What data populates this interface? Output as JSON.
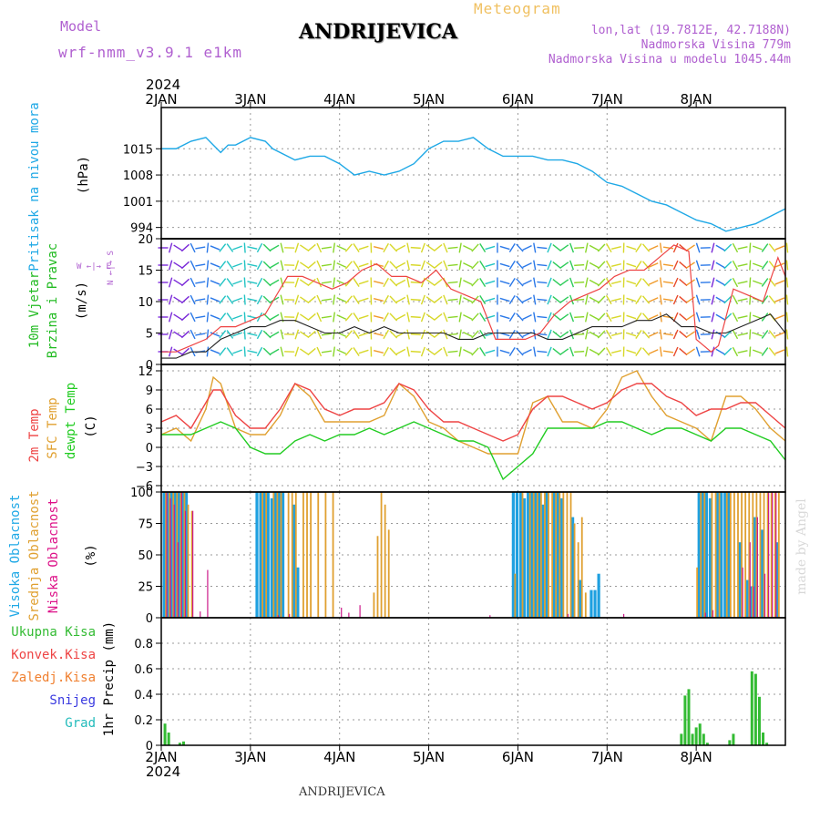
{
  "header": {
    "model_label": "Model",
    "model_name": "wrf-nmm_v3.9.1 e1km",
    "location": "ANDRIJEVICA",
    "meteogram_label": "Meteogram",
    "lonlat": "lon,lat (19.7812E, 42.7188N)",
    "elevation": "Nadmorska Visina 779m",
    "model_elevation": "Nadmorska Visina u modelu 1045.44m",
    "footer_location": "ANDRIJEVICA",
    "watermark": "made by Angel",
    "year_top": "2024",
    "year_bottom": "2024"
  },
  "colors": {
    "pressure": "#1ea8e6",
    "temp2m": "#ee4444",
    "sfc_temp": "#e0a030",
    "dewpt": "#22cc22",
    "wind_avg": "#222222",
    "wind_gust": "#ee4444",
    "high_cloud": "#1ea0e0",
    "mid_cloud": "#e0a030",
    "low_cloud": "#cc1a8a",
    "precip": "#33bb33",
    "label_purple": "#b060d0",
    "wind_label": "#22bb22",
    "cloud_high_label": "#1ea8e6",
    "cloud_mid_label": "#e0a030",
    "cloud_low_label": "#dd1188",
    "rain_total_label": "#33bb33",
    "rain_conv_label": "#ee4444",
    "rain_frozen_label": "#f08030",
    "snow_label": "#3a3ae0",
    "graupel_label": "#22bbbb"
  },
  "panels": {
    "pressure": {
      "labels": [
        "Pritisak na nivou mora"
      ],
      "unit": "(hPa)"
    },
    "wind": {
      "labels": [
        "10m Vjetar",
        "Brzina i Pravac"
      ],
      "unit": "(m/s)",
      "compass": "W  ←|→  E",
      "compass_ns": "N  ←|→  S"
    },
    "temperature": {
      "labels": [
        "2m Temp",
        "SFC Temp",
        "dewpt Temp"
      ],
      "unit": "(C)"
    },
    "cloud": {
      "labels": [
        "Visoka Oblacnost",
        "Srednja Oblacnost",
        "Niska Oblacnost"
      ],
      "unit": "(%)"
    },
    "precip": {
      "legend": [
        "Ukupna Kisa",
        "Konvek.Kisa",
        "Zaledj.Kisa",
        "Snijeg",
        "Grad"
      ],
      "unit": "1hr Precip (mm)"
    }
  },
  "chart_data": [
    {
      "type": "line",
      "panel": "pressure",
      "x_unit": "hours from 2024-01-02 00UTC",
      "x_ticks": [
        "2JAN",
        "3JAN",
        "4JAN",
        "5JAN",
        "6JAN",
        "7JAN",
        "8JAN"
      ],
      "yticks": [
        994,
        1001,
        1008,
        1015
      ],
      "ylim": [
        991,
        1026
      ],
      "series": [
        {
          "x": [
            0,
            4,
            8,
            12,
            16,
            18,
            20,
            24,
            28,
            30,
            36,
            40,
            44,
            48,
            52,
            56,
            60,
            64,
            68,
            72,
            76,
            80,
            84,
            88,
            92,
            96,
            100,
            104,
            108,
            112,
            116,
            120,
            124,
            128,
            132,
            136,
            140,
            144,
            148,
            150,
            152,
            156,
            160,
            164,
            166,
            168
          ],
          "y": [
            1015,
            1015,
            1017,
            1018,
            1014,
            1016,
            1016,
            1018,
            1017,
            1015,
            1012,
            1013,
            1013,
            1011,
            1008,
            1009,
            1008,
            1009,
            1011,
            1015,
            1017,
            1017,
            1018,
            1015,
            1013,
            1013,
            1013,
            1012,
            1012,
            1011,
            1009,
            1006,
            1005,
            1003,
            1001,
            1000,
            998,
            996,
            995,
            994,
            993,
            994,
            995,
            997,
            998,
            999
          ]
        }
      ]
    },
    {
      "type": "line",
      "panel": "wind",
      "ylim": [
        0,
        20
      ],
      "yticks": [
        0,
        5,
        10,
        15,
        20
      ],
      "x_ticks": [
        "2JAN",
        "3JAN",
        "4JAN",
        "5JAN",
        "6JAN",
        "7JAN",
        "8JAN"
      ],
      "series": [
        {
          "name": "avg",
          "x": [
            0,
            4,
            8,
            12,
            16,
            20,
            24,
            28,
            32,
            36,
            40,
            44,
            48,
            52,
            56,
            60,
            64,
            68,
            72,
            76,
            80,
            84,
            88,
            92,
            96,
            100,
            104,
            108,
            112,
            116,
            120,
            124,
            128,
            132,
            136,
            140,
            144,
            148,
            152,
            156,
            160,
            164,
            168
          ],
          "y": [
            1,
            1,
            2,
            2,
            4,
            5,
            6,
            6,
            7,
            7,
            6,
            5,
            5,
            6,
            5,
            6,
            5,
            5,
            5,
            5,
            4,
            4,
            5,
            5,
            5,
            5,
            4,
            4,
            5,
            6,
            6,
            6,
            7,
            7,
            8,
            6,
            6,
            5,
            5,
            6,
            7,
            8,
            5
          ]
        },
        {
          "name": "gust",
          "x": [
            0,
            4,
            8,
            12,
            16,
            20,
            24,
            28,
            30,
            34,
            38,
            42,
            46,
            50,
            54,
            58,
            62,
            66,
            70,
            74,
            78,
            82,
            86,
            90,
            94,
            98,
            102,
            106,
            110,
            114,
            118,
            122,
            126,
            130,
            134,
            138,
            142,
            144,
            148,
            150,
            154,
            158,
            162,
            166,
            168
          ],
          "y": [
            2,
            2,
            3,
            4,
            6,
            6,
            7,
            8,
            10,
            14,
            14,
            13,
            12,
            13,
            15,
            16,
            14,
            14,
            13,
            15,
            12,
            11,
            10,
            4,
            4,
            4,
            5,
            8,
            10,
            11,
            12,
            14,
            15,
            15,
            17,
            19,
            18,
            4,
            2,
            3,
            12,
            11,
            10,
            17,
            14
          ]
        }
      ]
    },
    {
      "type": "line",
      "panel": "temperature",
      "ylim": [
        -7,
        13
      ],
      "yticks": [
        -6,
        -3,
        0,
        3,
        6,
        9,
        12
      ],
      "x_ticks": [
        "2JAN",
        "3JAN",
        "4JAN",
        "5JAN",
        "6JAN",
        "7JAN",
        "8JAN"
      ],
      "series": [
        {
          "name": "2m Temp",
          "x": [
            0,
            4,
            8,
            12,
            14,
            16,
            20,
            24,
            28,
            32,
            36,
            40,
            44,
            48,
            52,
            56,
            60,
            64,
            68,
            72,
            76,
            80,
            84,
            88,
            92,
            96,
            100,
            104,
            108,
            112,
            116,
            120,
            124,
            128,
            132,
            136,
            140,
            144,
            148,
            152,
            156,
            160,
            164,
            168
          ],
          "y": [
            4,
            5,
            3,
            7,
            9,
            9,
            5,
            3,
            3,
            6,
            10,
            9,
            6,
            5,
            6,
            6,
            7,
            10,
            9,
            6,
            4,
            4,
            3,
            2,
            1,
            2,
            6,
            8,
            8,
            7,
            6,
            7,
            9,
            10,
            10,
            8,
            7,
            5,
            6,
            6,
            7,
            7,
            5,
            3
          ]
        },
        {
          "name": "SFC Temp",
          "x": [
            0,
            4,
            8,
            12,
            14,
            16,
            20,
            24,
            28,
            32,
            36,
            40,
            44,
            48,
            52,
            56,
            60,
            64,
            68,
            72,
            76,
            80,
            84,
            88,
            92,
            96,
            100,
            104,
            108,
            112,
            116,
            120,
            124,
            128,
            132,
            136,
            140,
            144,
            148,
            152,
            156,
            160,
            164,
            168
          ],
          "y": [
            2,
            3,
            1,
            6,
            11,
            10,
            3,
            2,
            2,
            5,
            10,
            8,
            4,
            4,
            4,
            4,
            5,
            10,
            8,
            4,
            3,
            1,
            0,
            -1,
            -1,
            -1,
            7,
            8,
            4,
            4,
            3,
            6,
            11,
            12,
            8,
            5,
            4,
            3,
            1,
            8,
            8,
            6,
            3,
            1
          ]
        },
        {
          "name": "dewpt Temp",
          "x": [
            0,
            4,
            8,
            12,
            16,
            20,
            24,
            28,
            32,
            36,
            40,
            44,
            48,
            52,
            56,
            60,
            64,
            68,
            72,
            76,
            80,
            84,
            88,
            92,
            96,
            100,
            104,
            108,
            112,
            116,
            120,
            124,
            128,
            132,
            136,
            140,
            144,
            148,
            152,
            156,
            160,
            164,
            168
          ],
          "y": [
            2,
            2,
            2,
            3,
            4,
            3,
            0,
            -1,
            -1,
            1,
            2,
            1,
            2,
            2,
            3,
            2,
            3,
            4,
            3,
            2,
            1,
            1,
            0,
            -5,
            -3,
            -1,
            3,
            3,
            3,
            3,
            4,
            4,
            3,
            2,
            3,
            3,
            2,
            1,
            3,
            3,
            2,
            1,
            -2
          ]
        }
      ]
    },
    {
      "type": "bar",
      "panel": "cloud",
      "ylim": [
        0,
        100
      ],
      "yticks": [
        0,
        25,
        50,
        75,
        100
      ],
      "x_ticks": [
        "2JAN",
        "3JAN",
        "4JAN",
        "5JAN",
        "6JAN",
        "7JAN",
        "8JAN"
      ],
      "series": [
        {
          "name": "high",
          "x": [
            1,
            2,
            3,
            4,
            5,
            6,
            7,
            26,
            27,
            28,
            29,
            30,
            31,
            32,
            33,
            36,
            37,
            95,
            96,
            97,
            98,
            99,
            100,
            101,
            102,
            103,
            104,
            106,
            107,
            108,
            111,
            113,
            116,
            117,
            118,
            145,
            146,
            147,
            148,
            150,
            151,
            152,
            153,
            156,
            158,
            159,
            160,
            162,
            166
          ],
          "y": [
            100,
            100,
            100,
            100,
            100,
            100,
            100,
            100,
            100,
            100,
            100,
            95,
            100,
            100,
            100,
            90,
            40,
            100,
            100,
            100,
            95,
            100,
            100,
            100,
            100,
            90,
            100,
            100,
            100,
            95,
            80,
            30,
            22,
            22,
            35,
            100,
            100,
            100,
            95,
            100,
            100,
            100,
            100,
            60,
            30,
            25,
            80,
            70,
            60
          ]
        },
        {
          "name": "mid",
          "x": [
            1,
            2,
            3,
            4,
            5,
            6,
            7,
            8,
            27,
            28,
            30,
            31,
            32,
            34,
            35,
            36,
            38,
            39,
            40,
            42,
            44,
            46,
            57,
            58,
            59,
            60,
            61,
            95,
            97,
            99,
            100,
            101,
            102,
            103,
            104,
            105,
            106,
            107,
            108,
            109,
            110,
            111,
            112,
            113,
            114,
            144,
            145,
            146,
            148,
            149,
            150,
            152,
            153,
            154,
            155,
            156,
            157,
            158,
            159,
            160,
            161,
            162,
            163,
            164,
            165,
            166
          ],
          "y": [
            100,
            100,
            100,
            100,
            100,
            100,
            90,
            85,
            100,
            100,
            100,
            100,
            100,
            100,
            100,
            100,
            100,
            100,
            100,
            100,
            100,
            100,
            20,
            65,
            100,
            90,
            70,
            35,
            100,
            100,
            100,
            100,
            100,
            100,
            100,
            100,
            100,
            100,
            100,
            100,
            100,
            75,
            60,
            80,
            20,
            40,
            100,
            100,
            100,
            100,
            100,
            100,
            100,
            100,
            100,
            100,
            100,
            100,
            100,
            100,
            100,
            100,
            100,
            100,
            100,
            100
          ]
        },
        {
          "name": "low",
          "x": [
            1,
            2,
            3,
            4,
            5,
            6,
            8,
            10,
            12,
            31,
            34,
            48,
            50,
            53,
            88,
            109,
            124,
            146,
            148,
            156,
            158,
            159,
            160,
            162,
            163,
            164,
            165
          ],
          "y": [
            100,
            95,
            90,
            60,
            100,
            85,
            85,
            5,
            38,
            2,
            3,
            8,
            4,
            10,
            2,
            3,
            3,
            4,
            6,
            40,
            60,
            25,
            80,
            35,
            100,
            100,
            100
          ]
        }
      ]
    },
    {
      "type": "bar",
      "panel": "precip",
      "ylim": [
        0,
        1.0
      ],
      "yticks": [
        0,
        0.2,
        0.4,
        0.6,
        0.8
      ],
      "x_ticks": [
        "2JAN",
        "3JAN",
        "4JAN",
        "5JAN",
        "6JAN",
        "7JAN",
        "8JAN"
      ],
      "series": [
        {
          "name": "Ukupna Kisa",
          "x": [
            1,
            2,
            5,
            6,
            140,
            141,
            142,
            143,
            144,
            145,
            146,
            147,
            153,
            154,
            159,
            160,
            161,
            162,
            163
          ],
          "y": [
            0.17,
            0.1,
            0.02,
            0.03,
            0.09,
            0.39,
            0.44,
            0.09,
            0.14,
            0.17,
            0.09,
            0.02,
            0.04,
            0.09,
            0.58,
            0.56,
            0.38,
            0.1,
            0.02
          ]
        }
      ]
    }
  ]
}
